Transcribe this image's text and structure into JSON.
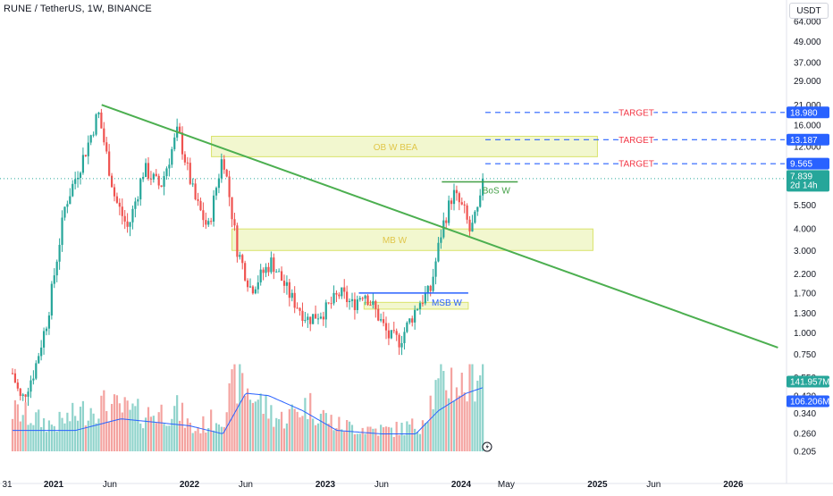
{
  "header": {
    "title": "RUNE / TetherUS, 1W, BINANCE"
  },
  "currency_button": {
    "label": "USDT"
  },
  "chart_data": {
    "type": "candlestick",
    "title": "RUNE / TetherUS, 1W, BINANCE",
    "y_scale": "log",
    "y_tick_labels": [
      "64.000",
      "49.000",
      "37.000",
      "29.000",
      "21.000",
      "16.000",
      "12.000",
      "5.500",
      "4.000",
      "3.000",
      "2.200",
      "1.700",
      "1.300",
      "1.000",
      "0.750",
      "0.550",
      "0.430",
      "0.340",
      "0.260",
      "0.205"
    ],
    "x_tick_labels": [
      {
        "label": "31",
        "bold": false
      },
      {
        "label": "2021",
        "bold": true
      },
      {
        "label": "Jun",
        "bold": false
      },
      {
        "label": "2022",
        "bold": true
      },
      {
        "label": "Jun",
        "bold": false
      },
      {
        "label": "2023",
        "bold": true
      },
      {
        "label": "Jun",
        "bold": false
      },
      {
        "label": "2024",
        "bold": true
      },
      {
        "label": "May",
        "bold": false
      },
      {
        "label": "2025",
        "bold": true
      },
      {
        "label": "Jun",
        "bold": false
      },
      {
        "label": "2026",
        "bold": true
      }
    ],
    "price_series_knots": [
      [
        "2020-09-01",
        0.7
      ],
      [
        "2020-10-06",
        0.4
      ],
      [
        "2020-11-10",
        0.6
      ],
      [
        "2020-12-15",
        1.2
      ],
      [
        "2021-02-01",
        5.5
      ],
      [
        "2021-04-01",
        12.0
      ],
      [
        "2021-05-01",
        19.0
      ],
      [
        "2021-06-15",
        6.0
      ],
      [
        "2021-07-20",
        4.0
      ],
      [
        "2021-09-01",
        9.0
      ],
      [
        "2021-10-15",
        7.0
      ],
      [
        "2021-12-01",
        15.0
      ],
      [
        "2022-01-15",
        6.0
      ],
      [
        "2022-02-20",
        4.0
      ],
      [
        "2022-04-01",
        11.0
      ],
      [
        "2022-05-10",
        3.0
      ],
      [
        "2022-06-15",
        1.8
      ],
      [
        "2022-08-10",
        2.6
      ],
      [
        "2022-10-01",
        1.6
      ],
      [
        "2022-11-15",
        1.2
      ],
      [
        "2023-01-01",
        1.35
      ],
      [
        "2023-02-10",
        1.7
      ],
      [
        "2023-03-15",
        1.45
      ],
      [
        "2023-04-15",
        1.75
      ],
      [
        "2023-05-15",
        1.35
      ],
      [
        "2023-06-20",
        0.95
      ],
      [
        "2023-07-20",
        0.9
      ],
      [
        "2023-09-10",
        1.5
      ],
      [
        "2023-10-10",
        1.75
      ],
      [
        "2023-11-10",
        4.0
      ],
      [
        "2023-12-10",
        6.5
      ],
      [
        "2024-01-10",
        5.0
      ],
      [
        "2024-01-25",
        3.8
      ],
      [
        "2024-02-20",
        5.5
      ],
      [
        "2024-03-01",
        7.839
      ]
    ],
    "volume_series_knots": [
      [
        "2020-09-01",
        0.4
      ],
      [
        "2021-01-01",
        0.25
      ],
      [
        "2021-05-01",
        0.45
      ],
      [
        "2021-09-01",
        0.35
      ],
      [
        "2021-12-01",
        0.4
      ],
      [
        "2022-01-10",
        0.2
      ],
      [
        "2022-04-01",
        0.35
      ],
      [
        "2022-05-10",
        0.7
      ],
      [
        "2022-06-15",
        0.55
      ],
      [
        "2022-09-01",
        0.3
      ],
      [
        "2022-11-15",
        0.45
      ],
      [
        "2023-02-01",
        0.25
      ],
      [
        "2023-06-20",
        0.2
      ],
      [
        "2023-09-10",
        0.25
      ],
      [
        "2023-10-20",
        0.55
      ],
      [
        "2023-12-01",
        0.7
      ],
      [
        "2024-01-10",
        0.6
      ],
      [
        "2024-03-01",
        0.9
      ]
    ],
    "volume_ma_knots": [
      [
        "2020-09-01",
        0.18
      ],
      [
        "2021-03-01",
        0.18
      ],
      [
        "2021-07-01",
        0.28
      ],
      [
        "2022-01-01",
        0.22
      ],
      [
        "2022-04-01",
        0.15
      ],
      [
        "2022-06-01",
        0.5
      ],
      [
        "2022-08-01",
        0.48
      ],
      [
        "2022-11-01",
        0.35
      ],
      [
        "2023-02-01",
        0.18
      ],
      [
        "2023-06-01",
        0.15
      ],
      [
        "2023-09-01",
        0.15
      ],
      [
        "2023-11-01",
        0.35
      ],
      [
        "2024-01-15",
        0.5
      ],
      [
        "2024-03-01",
        0.55
      ]
    ],
    "zones": [
      {
        "label": "OB W BEA",
        "low": 10.5,
        "high": 13.8,
        "start": "2022-03-01",
        "end": "2025-01-01"
      },
      {
        "label": "MB W",
        "low": 3.0,
        "high": 4.0,
        "start": "2022-04-25",
        "end": "2024-12-20"
      },
      {
        "label": "",
        "low": 1.37,
        "high": 1.5,
        "start": "2023-04-15",
        "end": "2024-01-20"
      }
    ],
    "trendline": {
      "start": [
        "2021-05-10",
        21.0
      ],
      "end": [
        "2026-05-01",
        0.82
      ]
    },
    "msb_line": {
      "label": "MSB W",
      "value": 1.7,
      "start": "2023-04-01",
      "end": "2024-01-20"
    },
    "bos_line": {
      "label": "BoS W",
      "value": 7.5,
      "start": "2023-11-10",
      "end": "2024-06-01"
    },
    "targets": [
      {
        "label": "TARGET",
        "value": 18.98,
        "value_label": "18.980"
      },
      {
        "label": "TARGET",
        "value": 13.187,
        "value_label": "13.187"
      },
      {
        "label": "TARGET",
        "value": 9.565,
        "value_label": "9.565"
      }
    ],
    "current_price": {
      "value": 7.839,
      "value_label": "7.839",
      "countdown": "2d 14h"
    },
    "volume_badges": {
      "volume": "141.957M",
      "volume_ma": "106.206M"
    },
    "colors": {
      "up": "#26a69a",
      "down": "#ef5350",
      "volume_up": "#8fd3cb",
      "volume_down": "#f4a3a0",
      "trendline": "#4caf50",
      "zone_fill": "#e7f0a8",
      "zone_border": "#d9e36a",
      "zone_text": "#e0c64a",
      "msb": "#2962ff",
      "target_line": "#2962ff",
      "target_text": "#f23645",
      "bos": "#43a047",
      "volume_ma": "#2962ff"
    }
  }
}
